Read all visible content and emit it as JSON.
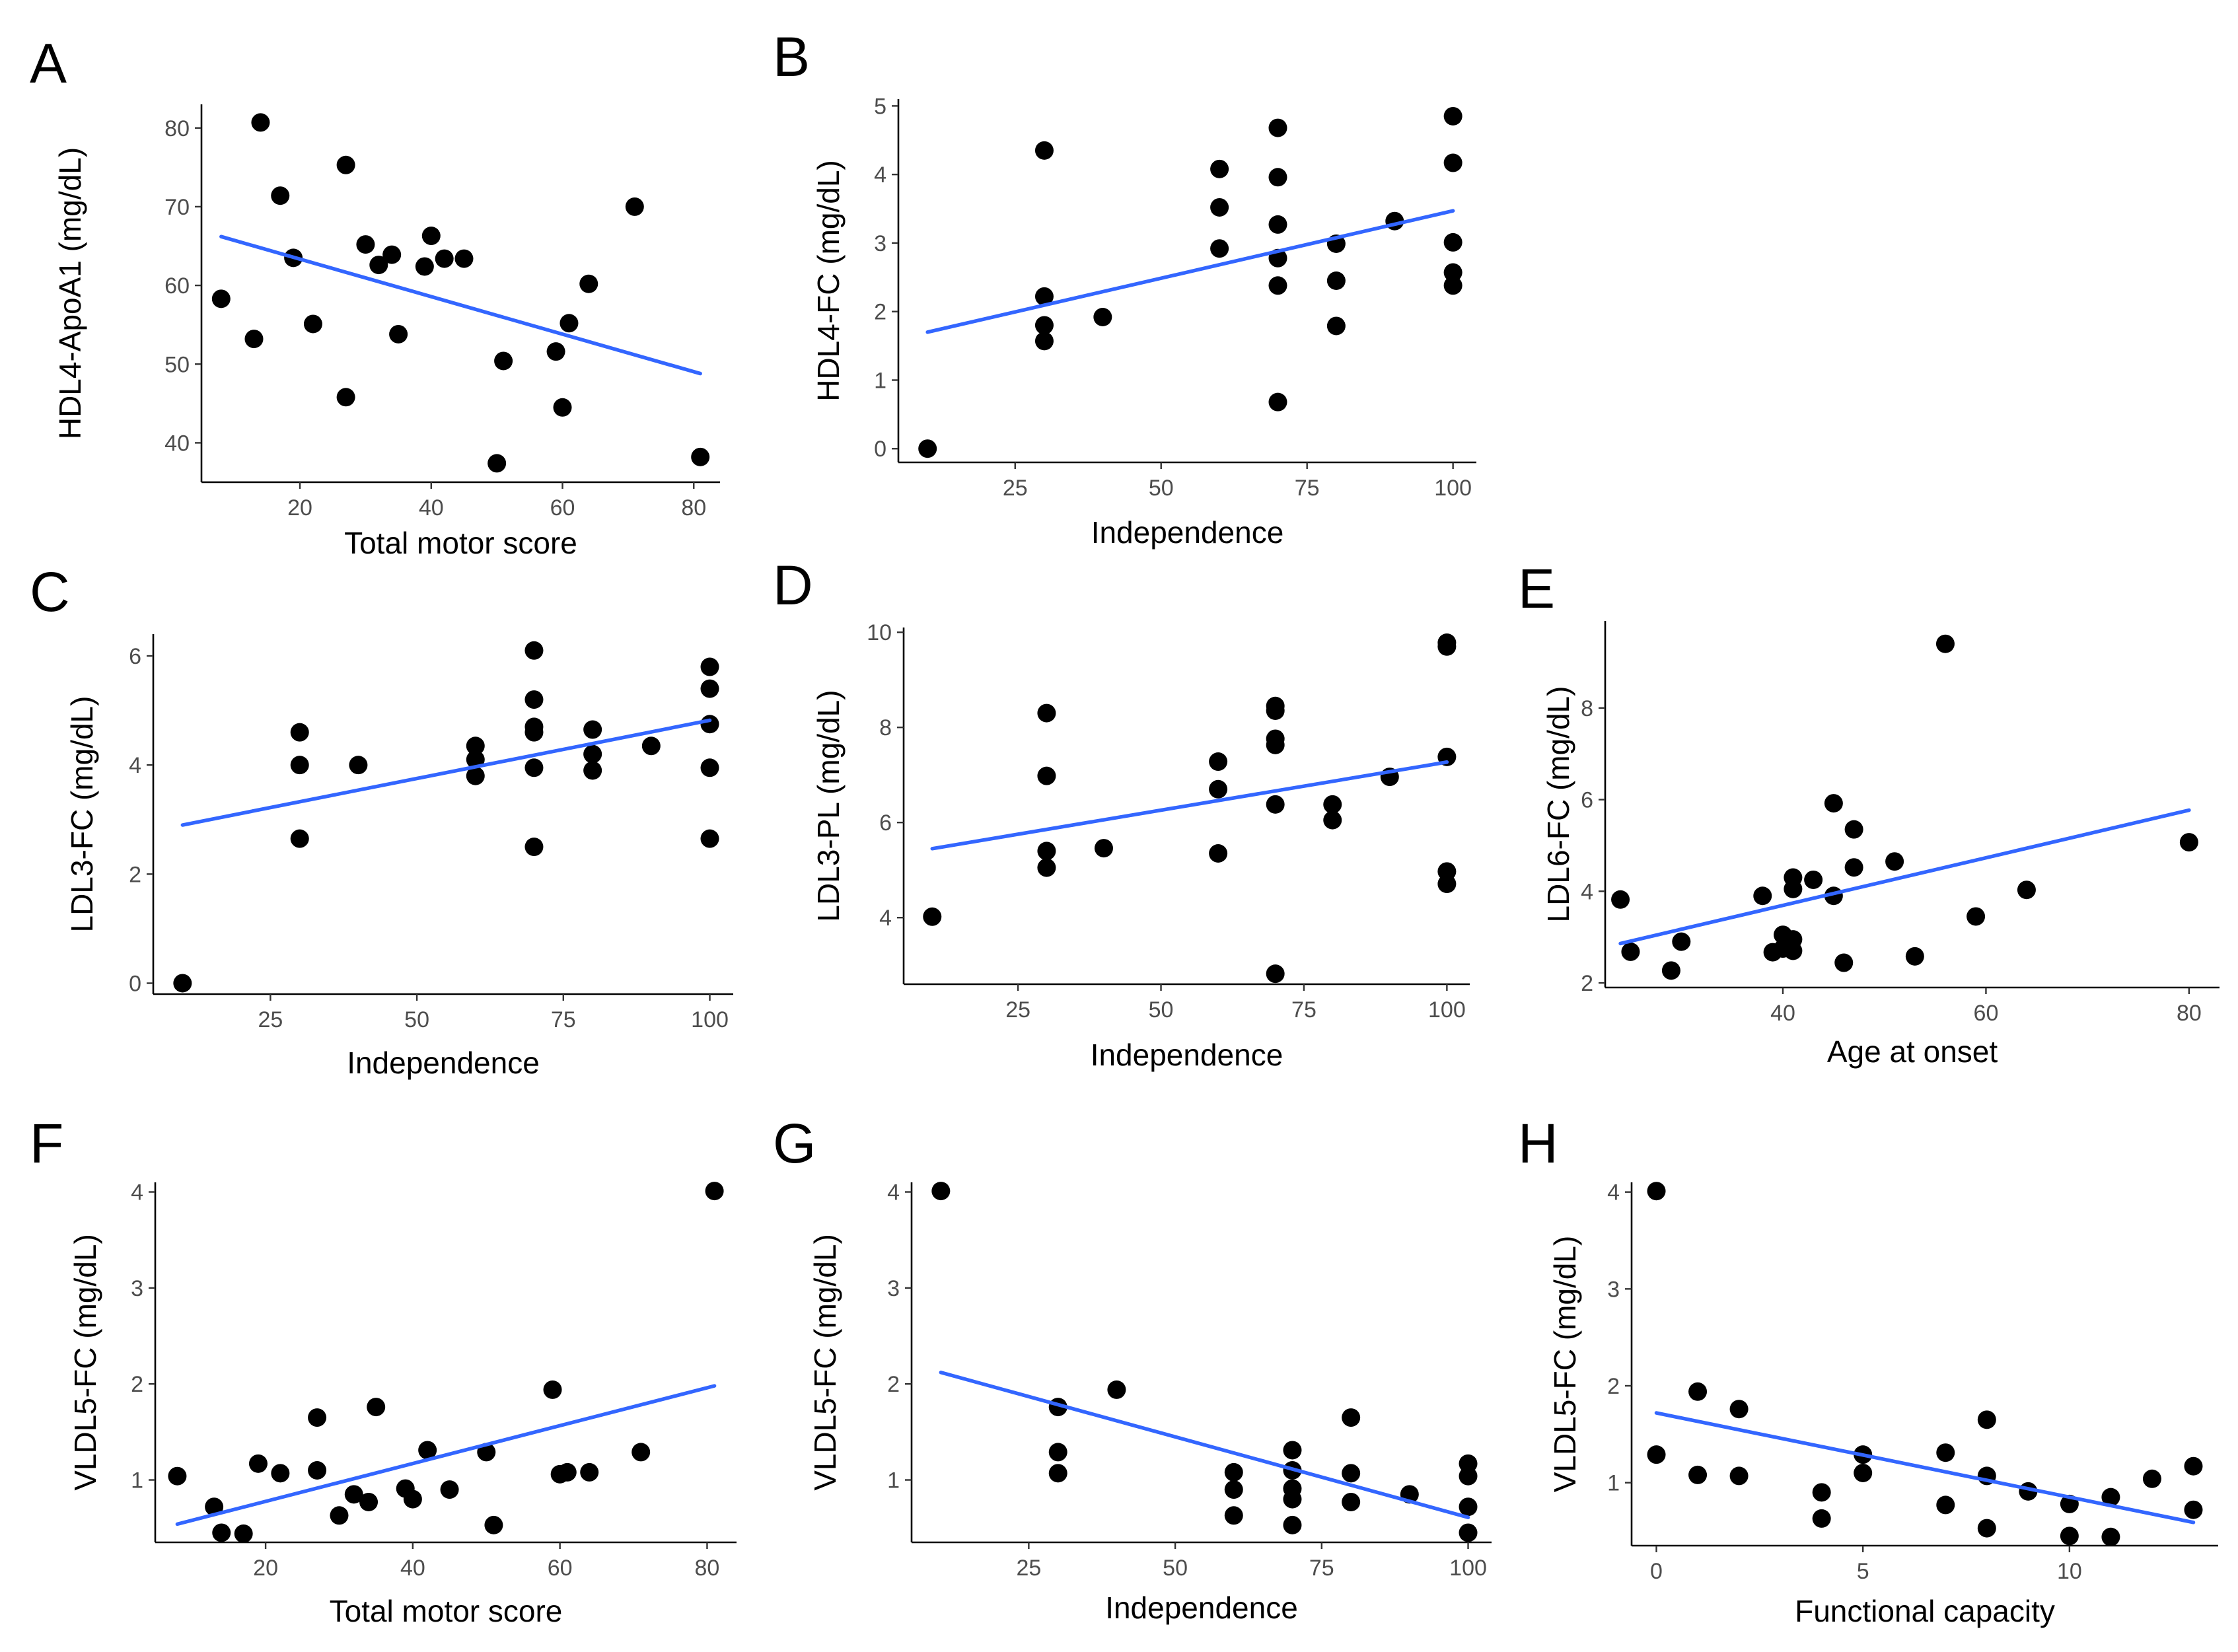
{
  "figure": {
    "background": "#ffffff",
    "point_color": "#000000",
    "line_color": "#3366ff"
  },
  "chart_data": [
    {
      "panel": "A",
      "type": "scatter",
      "xlabel": "Total motor score",
      "ylabel": "HDL4-ApoA1 (mg/dL)",
      "xlim": [
        5,
        84
      ],
      "ylim": [
        35,
        83
      ],
      "xticks": [
        20,
        40,
        60,
        80
      ],
      "yticks": [
        40,
        50,
        60,
        70,
        80
      ],
      "points": [
        [
          8,
          58.3
        ],
        [
          13,
          53.2
        ],
        [
          14,
          80.7
        ],
        [
          17,
          71.4
        ],
        [
          19,
          63.5
        ],
        [
          22,
          55.1
        ],
        [
          27,
          75.3
        ],
        [
          27,
          45.8
        ],
        [
          30,
          65.2
        ],
        [
          32,
          62.6
        ],
        [
          34,
          63.9
        ],
        [
          35,
          53.8
        ],
        [
          39,
          62.4
        ],
        [
          40,
          66.3
        ],
        [
          42,
          63.4
        ],
        [
          45,
          63.4
        ],
        [
          50,
          37.4
        ],
        [
          51,
          50.4
        ],
        [
          59,
          51.6
        ],
        [
          60,
          44.5
        ],
        [
          61,
          55.2
        ],
        [
          64,
          60.2
        ],
        [
          71,
          70
        ],
        [
          81,
          38.2
        ]
      ],
      "fit": [
        [
          8,
          66.2
        ],
        [
          81,
          48.8
        ]
      ]
    },
    {
      "panel": "B",
      "type": "scatter",
      "xlabel": "Independence",
      "ylabel": "HDL4-FC (mg/dL)",
      "xlim": [
        5,
        104
      ],
      "ylim": [
        -0.2,
        5.1
      ],
      "xticks": [
        25,
        50,
        75,
        100
      ],
      "yticks": [
        0,
        1,
        2,
        3,
        4,
        5
      ],
      "points": [
        [
          10,
          0
        ],
        [
          30,
          4.35
        ],
        [
          30,
          2.22
        ],
        [
          30,
          1.8
        ],
        [
          30,
          1.57
        ],
        [
          40,
          1.92
        ],
        [
          60,
          4.08
        ],
        [
          60,
          3.52
        ],
        [
          60,
          2.92
        ],
        [
          70,
          4.68
        ],
        [
          70,
          3.96
        ],
        [
          70,
          3.27
        ],
        [
          70,
          2.78
        ],
        [
          70,
          2.38
        ],
        [
          70,
          0.68
        ],
        [
          80,
          2.99
        ],
        [
          80,
          2.45
        ],
        [
          80,
          1.79
        ],
        [
          90,
          3.32
        ],
        [
          100,
          4.85
        ],
        [
          100,
          4.17
        ],
        [
          100,
          3.01
        ],
        [
          100,
          2.57
        ],
        [
          100,
          2.38
        ]
      ],
      "fit": [
        [
          10,
          1.7
        ],
        [
          100,
          3.47
        ]
      ]
    },
    {
      "panel": "C",
      "type": "scatter",
      "xlabel": "Independence",
      "ylabel": "LDL3-FC (mg/dL)",
      "xlim": [
        5,
        104
      ],
      "ylim": [
        -0.2,
        6.4
      ],
      "xticks": [
        25,
        50,
        75,
        100
      ],
      "yticks": [
        0,
        2,
        4,
        6
      ],
      "points": [
        [
          10,
          0
        ],
        [
          30,
          4.6
        ],
        [
          30,
          4
        ],
        [
          30,
          2.65
        ],
        [
          40,
          4
        ],
        [
          60,
          4.35
        ],
        [
          60,
          4.1
        ],
        [
          60,
          3.8
        ],
        [
          70,
          6.1
        ],
        [
          70,
          5.2
        ],
        [
          70,
          4.7
        ],
        [
          70,
          4.6
        ],
        [
          70,
          3.95
        ],
        [
          70,
          2.5
        ],
        [
          80,
          4.65
        ],
        [
          80,
          4.2
        ],
        [
          80,
          3.9
        ],
        [
          90,
          4.35
        ],
        [
          100,
          5.8
        ],
        [
          100,
          5.4
        ],
        [
          100,
          4.75
        ],
        [
          100,
          3.95
        ],
        [
          100,
          2.65
        ]
      ],
      "fit": [
        [
          10,
          2.9
        ],
        [
          100,
          4.82
        ]
      ]
    },
    {
      "panel": "D",
      "type": "scatter",
      "xlabel": "Independence",
      "ylabel": "LDL3-PL (mg/dL)",
      "xlim": [
        5,
        104
      ],
      "ylim": [
        2.6,
        10.1
      ],
      "xticks": [
        25,
        50,
        75,
        100
      ],
      "yticks": [
        4,
        6,
        8,
        10
      ],
      "points": [
        [
          10,
          4.02
        ],
        [
          30,
          8.3
        ],
        [
          30,
          6.98
        ],
        [
          30,
          5.4
        ],
        [
          30,
          5.05
        ],
        [
          40,
          5.46
        ],
        [
          60,
          7.28
        ],
        [
          60,
          6.7
        ],
        [
          60,
          5.35
        ],
        [
          70,
          8.45
        ],
        [
          70,
          8.35
        ],
        [
          70,
          7.76
        ],
        [
          70,
          7.63
        ],
        [
          70,
          6.38
        ],
        [
          70,
          2.82
        ],
        [
          80,
          6.38
        ],
        [
          80,
          6.05
        ],
        [
          90,
          6.96
        ],
        [
          100,
          9.78
        ],
        [
          100,
          9.7
        ],
        [
          100,
          7.38
        ],
        [
          100,
          4.97
        ],
        [
          100,
          4.71
        ]
      ],
      "fit": [
        [
          10,
          5.45
        ],
        [
          100,
          7.27
        ]
      ]
    },
    {
      "panel": "E",
      "type": "scatter",
      "xlabel": "Age at onset",
      "ylabel": "LDL6-FC (mg/dL)",
      "xlim": [
        22.5,
        83
      ],
      "ylim": [
        1.9,
        9.9
      ],
      "xticks": [
        40,
        60,
        80
      ],
      "yticks": [
        2,
        4,
        6,
        8
      ],
      "points": [
        [
          24,
          3.82
        ],
        [
          25,
          2.68
        ],
        [
          29,
          2.27
        ],
        [
          30,
          2.9
        ],
        [
          38,
          3.9
        ],
        [
          39,
          2.67
        ],
        [
          40,
          3.05
        ],
        [
          40,
          2.75
        ],
        [
          41,
          4.3
        ],
        [
          41,
          4.05
        ],
        [
          41,
          2.95
        ],
        [
          41,
          2.7
        ],
        [
          43,
          4.25
        ],
        [
          45,
          5.92
        ],
        [
          45,
          3.9
        ],
        [
          46,
          2.44
        ],
        [
          47,
          5.35
        ],
        [
          47,
          4.52
        ],
        [
          51,
          4.65
        ],
        [
          53,
          2.58
        ],
        [
          56,
          9.4
        ],
        [
          59,
          3.45
        ],
        [
          64,
          4.03
        ],
        [
          80,
          5.07
        ]
      ],
      "fit": [
        [
          24,
          2.86
        ],
        [
          80,
          5.77
        ]
      ]
    },
    {
      "panel": "F",
      "type": "scatter",
      "xlabel": "Total motor score",
      "ylabel": "VLDL5-FC (mg/dL)",
      "xlim": [
        5,
        84
      ],
      "ylim": [
        0.35,
        4.1
      ],
      "xticks": [
        20,
        40,
        60,
        80
      ],
      "yticks": [
        1,
        2,
        3,
        4
      ],
      "points": [
        [
          8,
          1.04
        ],
        [
          13,
          0.72
        ],
        [
          14,
          0.45
        ],
        [
          17,
          0.44
        ],
        [
          19,
          1.17
        ],
        [
          22,
          1.07
        ],
        [
          27,
          1.65
        ],
        [
          27,
          1.1
        ],
        [
          30,
          0.63
        ],
        [
          32,
          0.85
        ],
        [
          34,
          0.77
        ],
        [
          35,
          1.76
        ],
        [
          39,
          0.91
        ],
        [
          40,
          0.8
        ],
        [
          42,
          1.31
        ],
        [
          45,
          0.9
        ],
        [
          50,
          1.29
        ],
        [
          51,
          0.53
        ],
        [
          59,
          1.94
        ],
        [
          60,
          1.06
        ],
        [
          61,
          1.08
        ],
        [
          64,
          1.08
        ],
        [
          71,
          1.29
        ],
        [
          81,
          4.01
        ]
      ],
      "fit": [
        [
          8,
          0.54
        ],
        [
          81,
          1.98
        ]
      ]
    },
    {
      "panel": "G",
      "type": "scatter",
      "xlabel": "Independence",
      "ylabel": "VLDL5-FC (mg/dL)",
      "xlim": [
        5,
        104
      ],
      "ylim": [
        0.35,
        4.1
      ],
      "xticks": [
        25,
        50,
        75,
        100
      ],
      "yticks": [
        1,
        2,
        3,
        4
      ],
      "points": [
        [
          10,
          4.01
        ],
        [
          30,
          1.76
        ],
        [
          30,
          1.29
        ],
        [
          30,
          1.07
        ],
        [
          40,
          1.94
        ],
        [
          60,
          1.08
        ],
        [
          60,
          0.9
        ],
        [
          60,
          0.63
        ],
        [
          70,
          1.31
        ],
        [
          70,
          1.1
        ],
        [
          70,
          0.91
        ],
        [
          70,
          0.8
        ],
        [
          70,
          0.53
        ],
        [
          80,
          1.65
        ],
        [
          80,
          1.07
        ],
        [
          80,
          0.77
        ],
        [
          90,
          0.85
        ],
        [
          100,
          1.17
        ],
        [
          100,
          1.04
        ],
        [
          100,
          0.72
        ],
        [
          100,
          0.45
        ]
      ],
      "fit": [
        [
          10,
          2.12
        ],
        [
          100,
          0.61
        ]
      ]
    },
    {
      "panel": "H",
      "type": "scatter",
      "xlabel": "Functional capacity",
      "ylabel": "VLDL5-FC (mg/dL)",
      "xlim": [
        -0.6,
        13.6
      ],
      "ylim": [
        0.35,
        4.1
      ],
      "xticks": [
        0,
        5,
        10
      ],
      "yticks": [
        1,
        2,
        3,
        4
      ],
      "points": [
        [
          0,
          4.01
        ],
        [
          0,
          1.29
        ],
        [
          1,
          1.94
        ],
        [
          1,
          1.08
        ],
        [
          2,
          1.76
        ],
        [
          2,
          1.07
        ],
        [
          4,
          0.9
        ],
        [
          4,
          0.63
        ],
        [
          5,
          1.29
        ],
        [
          5,
          1.1
        ],
        [
          7,
          1.31
        ],
        [
          7,
          0.77
        ],
        [
          8,
          1.65
        ],
        [
          8,
          1.07
        ],
        [
          8,
          0.53
        ],
        [
          9,
          0.91
        ],
        [
          10,
          0.78
        ],
        [
          10,
          0.45
        ],
        [
          11,
          0.85
        ],
        [
          11,
          0.44
        ],
        [
          12,
          1.04
        ],
        [
          13,
          1.17
        ],
        [
          13,
          0.72
        ]
      ],
      "fit": [
        [
          0,
          1.72
        ],
        [
          13,
          0.59
        ]
      ]
    }
  ]
}
